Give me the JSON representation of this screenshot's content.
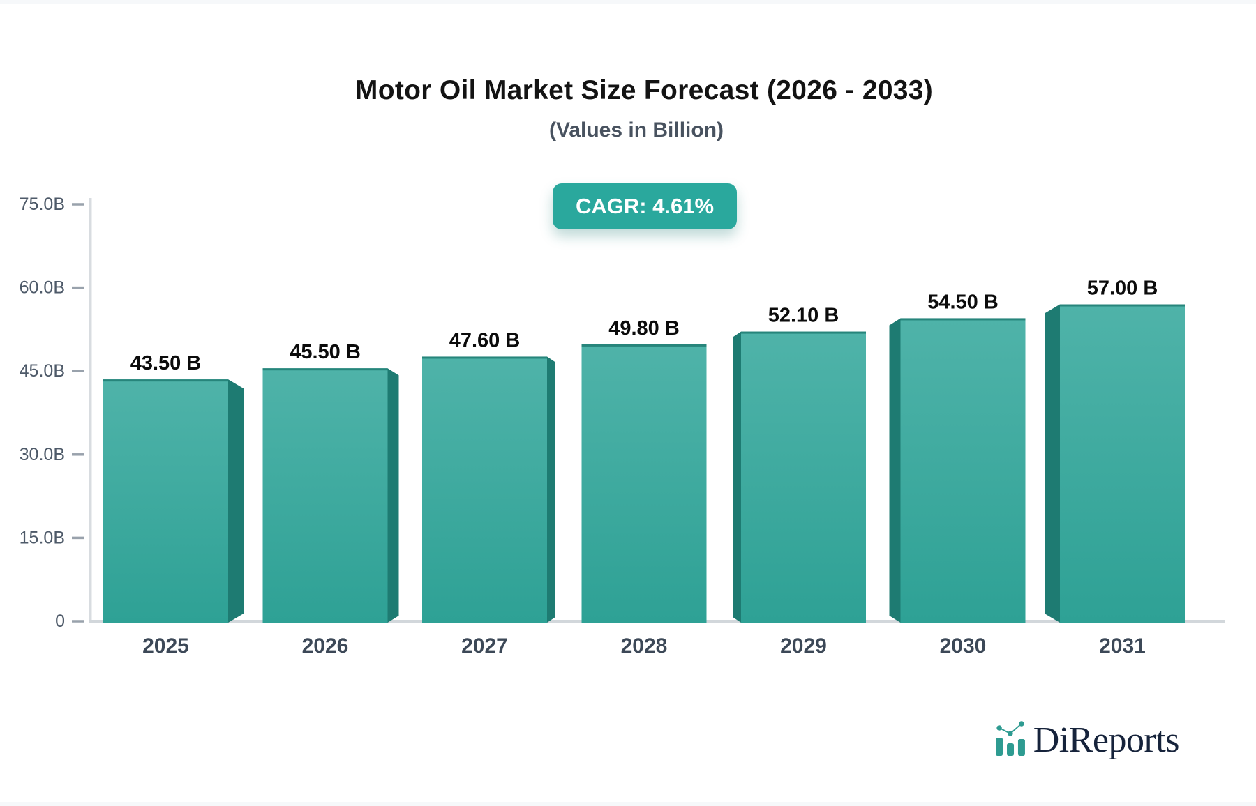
{
  "chart_data": {
    "type": "bar",
    "style": "3d-perspective-bars",
    "title": "Motor Oil Market Size Forecast (2026 - 2033)",
    "subtitle": "(Values in Billion)",
    "annotation": "CAGR: 4.61%",
    "categories": [
      "2025",
      "2026",
      "2027",
      "2028",
      "2029",
      "2030",
      "2031"
    ],
    "values": [
      43.5,
      45.5,
      47.6,
      49.8,
      52.1,
      54.5,
      57.0
    ],
    "value_labels": [
      "43.50 B",
      "45.50 B",
      "47.60 B",
      "49.80 B",
      "52.10 B",
      "54.50 B",
      "57.00 B"
    ],
    "ytick_labels": [
      "75.0B",
      "60.0B",
      "45.0B",
      "30.0B",
      "15.0B",
      "0"
    ],
    "ytick_values": [
      75,
      60,
      45,
      30,
      15,
      0
    ],
    "ylim": [
      0,
      75
    ],
    "grid": false,
    "legend_position": "none",
    "colors": {
      "bar_face_top": "#4FB3A9",
      "bar_face_bottom": "#2EA195",
      "bar_top_edge": "#27857B",
      "bar_side": "#1E7B72",
      "badge_bg": "#2AA89D",
      "badge_text": "#FFFFFF",
      "value_label": "#0B0B0B",
      "axis_label": "#4E5A69",
      "category_label": "#3C4857",
      "tick_mark": "#99A2AC",
      "axis_line": "#D8DCE0",
      "baseline": "#D2D7DB"
    }
  },
  "branding": {
    "logo_text": "DiReports",
    "logo_icon": "bar-chart-trend-icon",
    "logo_text_color": "#16233B",
    "logo_icon_color": "#2E9B91"
  }
}
